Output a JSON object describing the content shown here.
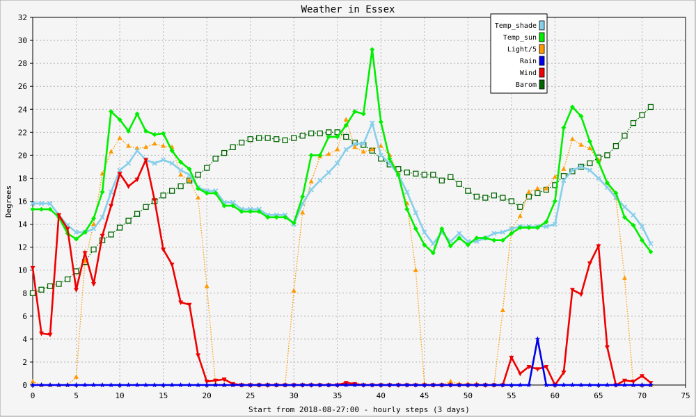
{
  "chart_data": {
    "type": "line",
    "title": "Weather in Essex",
    "xlabel": "Start from 2018-08-27:00 - hourly steps (3 days)",
    "ylabel": "Degrees",
    "xlim": [
      0,
      75
    ],
    "ylim": [
      0,
      32
    ],
    "xticks": [
      0,
      5,
      10,
      15,
      20,
      25,
      30,
      35,
      40,
      45,
      50,
      55,
      60,
      65,
      70,
      75
    ],
    "yticks": [
      0,
      2,
      4,
      6,
      8,
      10,
      12,
      14,
      16,
      18,
      20,
      22,
      24,
      26,
      28,
      30,
      32
    ],
    "grid": true,
    "legend_position": "top-right",
    "x": [
      0,
      1,
      2,
      3,
      4,
      5,
      6,
      7,
      8,
      9,
      10,
      11,
      12,
      13,
      14,
      15,
      16,
      17,
      18,
      19,
      20,
      21,
      22,
      23,
      24,
      25,
      26,
      27,
      28,
      29,
      30,
      31,
      32,
      33,
      34,
      35,
      36,
      37,
      38,
      39,
      40,
      41,
      42,
      43,
      44,
      45,
      46,
      47,
      48,
      49,
      50,
      51,
      52,
      53,
      54,
      55,
      56,
      57,
      58,
      59,
      60,
      61,
      62,
      63,
      64,
      65,
      66,
      67,
      68,
      69,
      70,
      71
    ],
    "series": [
      {
        "name": "Temp_shade",
        "color": "#87ceeb",
        "marker": "x",
        "style": "solid",
        "values": [
          15.8,
          15.8,
          15.8,
          14.8,
          13.9,
          13.3,
          13.3,
          13.6,
          14.6,
          16.8,
          18.7,
          19.3,
          20.4,
          19.6,
          19.3,
          19.6,
          19.3,
          18.7,
          18.3,
          17.2,
          16.9,
          16.9,
          15.9,
          15.9,
          15.3,
          15.3,
          15.3,
          14.8,
          14.8,
          14.8,
          14.0,
          15.8,
          17.0,
          17.8,
          18.5,
          19.3,
          20.5,
          21.0,
          21.0,
          22.8,
          20.0,
          19.3,
          18.3,
          16.8,
          15.0,
          13.3,
          12.3,
          13.3,
          12.5,
          13.2,
          12.5,
          12.5,
          12.8,
          13.2,
          13.3,
          13.6,
          13.8,
          13.8,
          13.8,
          13.8,
          14.0,
          17.8,
          18.7,
          19.0,
          18.7,
          18.0,
          17.2,
          16.3,
          15.5,
          14.8,
          13.8,
          12.3
        ]
      },
      {
        "name": "Temp_sun",
        "color": "#00ee00",
        "marker": "diamond",
        "style": "solid",
        "values": [
          15.3,
          15.3,
          15.3,
          14.6,
          13.2,
          12.7,
          13.3,
          14.5,
          16.8,
          23.8,
          23.1,
          22.1,
          23.6,
          22.1,
          21.8,
          21.9,
          20.4,
          19.4,
          18.8,
          17.1,
          16.7,
          16.7,
          15.6,
          15.6,
          15.1,
          15.1,
          15.1,
          14.6,
          14.6,
          14.6,
          14.1,
          16.4,
          20.0,
          20.0,
          21.6,
          21.6,
          22.6,
          23.8,
          23.6,
          29.2,
          22.9,
          19.7,
          18.3,
          15.3,
          13.6,
          12.2,
          11.5,
          13.6,
          12.1,
          12.8,
          12.2,
          12.8,
          12.8,
          12.6,
          12.6,
          13.2,
          13.7,
          13.7,
          13.7,
          14.2,
          16.0,
          22.4,
          24.2,
          23.4,
          21.2,
          19.4,
          17.6,
          16.7,
          14.6,
          13.9,
          12.6,
          11.6
        ]
      },
      {
        "name": "Light/5",
        "color": "#ff9900",
        "marker": "triangle-up",
        "style": "dotted",
        "values": [
          0.3,
          0.0,
          0.0,
          0.0,
          0.0,
          0.7,
          10.8,
          14.0,
          18.4,
          20.3,
          21.5,
          20.8,
          20.6,
          20.7,
          21.0,
          20.8,
          20.7,
          18.3,
          17.8,
          16.3,
          8.6,
          0.1,
          0.0,
          0.0,
          0.0,
          0.0,
          0.0,
          0.0,
          0.0,
          0.0,
          8.2,
          15.0,
          17.7,
          19.9,
          20.1,
          20.5,
          23.1,
          20.7,
          20.3,
          20.5,
          20.8,
          20.0,
          18.4,
          15.8,
          10.0,
          0.1,
          0.0,
          0.0,
          0.3,
          0.1,
          0.1,
          0.1,
          0.0,
          0.0,
          6.5,
          13.6,
          14.7,
          16.8,
          17.1,
          17.1,
          18.1,
          18.8,
          21.4,
          20.9,
          20.6,
          19.6,
          17.6,
          16.3,
          9.3,
          0.0,
          0.0,
          0.0
        ]
      },
      {
        "name": "Rain",
        "color": "#0000ee",
        "marker": "star",
        "style": "solid",
        "values": [
          0,
          0,
          0,
          0,
          0,
          0,
          0,
          0,
          0,
          0,
          0,
          0,
          0,
          0,
          0,
          0,
          0,
          0,
          0,
          0,
          0,
          0,
          0,
          0,
          0,
          0,
          0,
          0,
          0,
          0,
          0,
          0,
          0,
          0,
          0,
          0,
          0,
          0,
          0,
          0,
          0,
          0,
          0,
          0,
          0,
          0,
          0,
          0,
          0,
          0,
          0,
          0,
          0,
          0,
          0,
          0,
          0,
          0,
          4.0,
          0,
          0,
          0,
          0,
          0,
          0,
          0,
          0,
          0,
          0,
          0,
          0,
          0
        ]
      },
      {
        "name": "Wind",
        "color": "#ee0000",
        "marker": "triangle-down",
        "style": "solid",
        "values": [
          10.2,
          4.5,
          4.4,
          14.8,
          13.6,
          8.3,
          11.5,
          8.8,
          13.0,
          15.6,
          18.4,
          17.3,
          17.9,
          19.6,
          16.1,
          11.8,
          10.5,
          7.2,
          7.0,
          2.6,
          0.3,
          0.4,
          0.5,
          0.1,
          0.0,
          0.0,
          0.0,
          0.0,
          0.0,
          0.0,
          0.0,
          0.0,
          0.0,
          0.0,
          0.0,
          0.0,
          0.2,
          0.1,
          0.0,
          0.0,
          0.0,
          0.0,
          0.0,
          0.0,
          0.0,
          0.0,
          0.0,
          0.0,
          0.0,
          0.0,
          0.0,
          0.0,
          0.0,
          0.0,
          0.0,
          2.4,
          1.0,
          1.6,
          1.4,
          1.6,
          0.0,
          1.1,
          8.3,
          7.9,
          10.6,
          12.1,
          3.3,
          0.0,
          0.4,
          0.3,
          0.8,
          0.2
        ]
      },
      {
        "name": "Barom",
        "color": "#006600",
        "marker": "square",
        "style": "dotted",
        "values": [
          8.0,
          8.3,
          8.6,
          8.8,
          9.2,
          9.9,
          10.7,
          11.8,
          12.6,
          13.1,
          13.7,
          14.3,
          14.9,
          15.5,
          16.0,
          16.5,
          16.9,
          17.3,
          17.8,
          18.3,
          18.9,
          19.7,
          20.2,
          20.7,
          21.1,
          21.4,
          21.5,
          21.5,
          21.4,
          21.3,
          21.5,
          21.7,
          21.9,
          21.9,
          22.0,
          22.0,
          21.6,
          21.1,
          20.9,
          20.4,
          19.7,
          19.2,
          18.8,
          18.5,
          18.4,
          18.3,
          18.3,
          17.8,
          18.1,
          17.5,
          16.9,
          16.4,
          16.3,
          16.5,
          16.3,
          16.0,
          15.5,
          16.4,
          16.7,
          17.0,
          17.4,
          18.2,
          18.6,
          19.0,
          19.3,
          19.8,
          20.0,
          20.8,
          21.7,
          22.8,
          23.5,
          24.2
        ]
      }
    ]
  }
}
